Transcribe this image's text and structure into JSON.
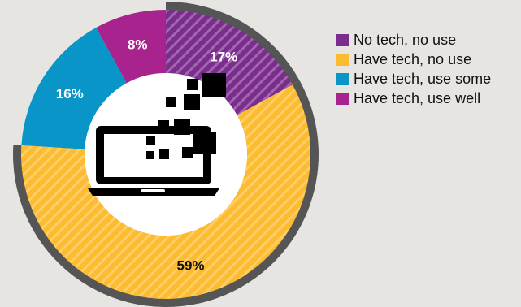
{
  "chart_data": {
    "type": "pie",
    "donut": true,
    "categories": [
      "No tech, no use",
      "Have tech, no use",
      "Have tech, use some",
      "Have tech, use well"
    ],
    "values": [
      17,
      59,
      16,
      8
    ],
    "labels": [
      "17%",
      "59%",
      "16%",
      "8%"
    ],
    "colors": [
      "#7a2d8c",
      "#fdbb2f",
      "#0995c8",
      "#a8238d"
    ],
    "hatched": [
      true,
      true,
      false,
      false
    ],
    "outline_color": "#555555",
    "center_icon": "laptop-icon",
    "legend_position": "right"
  }
}
